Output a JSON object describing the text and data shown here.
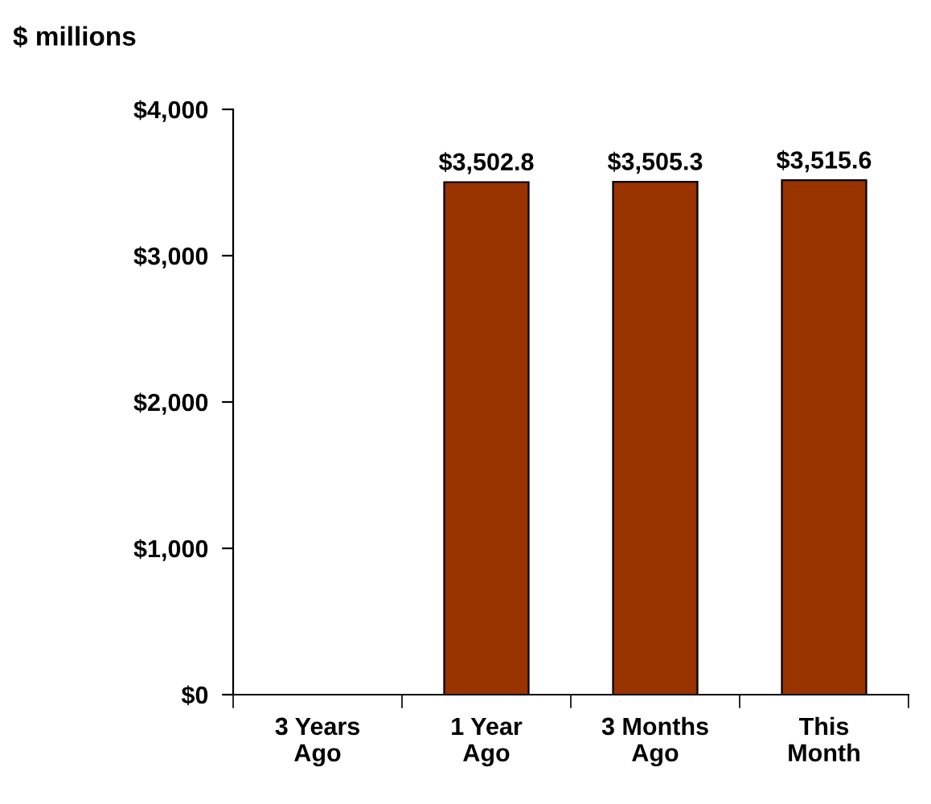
{
  "chart_data": {
    "type": "bar",
    "ylabel": "$ millions",
    "categories": [
      "3 Years\nAgo",
      "1 Year\nAgo",
      "3 Months\nAgo",
      "This\nMonth"
    ],
    "values": [
      null,
      3502.8,
      3505.3,
      3515.6
    ],
    "value_labels": [
      null,
      "$3,502.8",
      "$3,505.3",
      "$3,515.6"
    ],
    "color": "#993300",
    "ylim": [
      0,
      4000
    ],
    "yticks": [
      {
        "value": 0,
        "label": "$0"
      },
      {
        "value": 1000,
        "label": "$1,000"
      },
      {
        "value": 2000,
        "label": "$2,000"
      },
      {
        "value": 3000,
        "label": "$3,000"
      },
      {
        "value": 4000,
        "label": "$4,000"
      }
    ],
    "grid": false,
    "legend": false
  }
}
